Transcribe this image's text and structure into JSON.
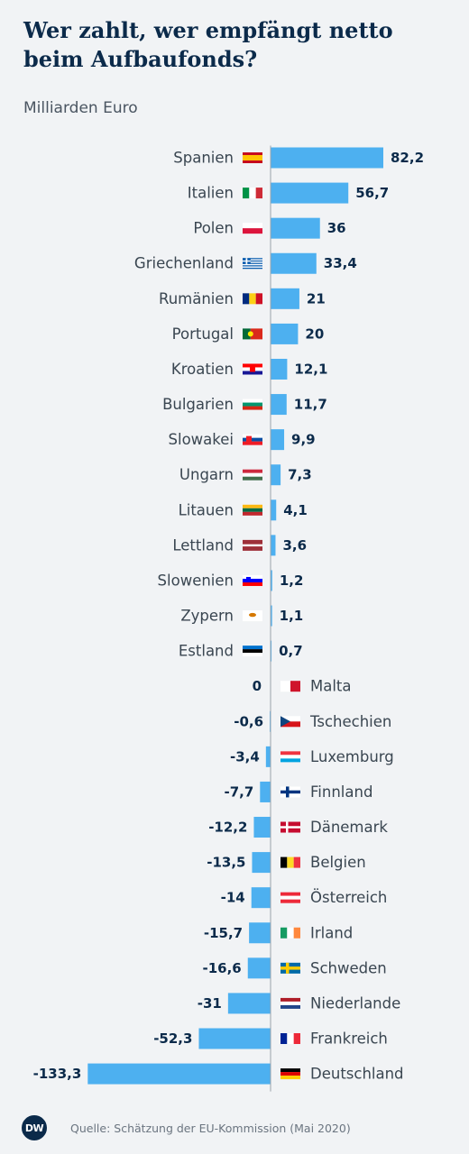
{
  "header": {
    "title": "Wer zahlt, wer empfängt netto beim Aufbaufonds?",
    "subtitle": "Milliarden Euro"
  },
  "footer": {
    "logo_text": "DW",
    "source": "Quelle: Schätzung der EU-Kommission (Mai 2020)"
  },
  "colors": {
    "bar": "#4db0f0",
    "label": "#3a4651",
    "value": "#0b2a4a",
    "axis": "#9aa3ab"
  },
  "chart_data": {
    "type": "bar",
    "orientation": "horizontal",
    "unit": "Milliarden Euro",
    "grid": false,
    "categories": [
      "Spanien",
      "Italien",
      "Polen",
      "Griechenland",
      "Rumänien",
      "Portugal",
      "Kroatien",
      "Bulgarien",
      "Slowakei",
      "Ungarn",
      "Litauen",
      "Lettland",
      "Slowenien",
      "Zypern",
      "Estland",
      "Malta",
      "Tschechien",
      "Luxemburg",
      "Finnland",
      "Dänemark",
      "Belgien",
      "Österreich",
      "Irland",
      "Schweden",
      "Niederlande",
      "Frankreich",
      "Deutschland"
    ],
    "values": [
      82.2,
      56.7,
      36,
      33.4,
      21,
      20,
      12.1,
      11.7,
      9.9,
      7.3,
      4.1,
      3.6,
      1.2,
      1.1,
      0.7,
      0,
      -0.6,
      -3.4,
      -7.7,
      -12.2,
      -13.5,
      -14,
      -15.7,
      -16.6,
      -31,
      -52.3,
      -133.3
    ],
    "value_labels": [
      "82,2",
      "56,7",
      "36",
      "33,4",
      "21",
      "20",
      "12,1",
      "11,7",
      "9,9",
      "7,3",
      "4,1",
      "3,6",
      "1,2",
      "1,1",
      "0,7",
      "0",
      "-0,6",
      "-3,4",
      "-7,7",
      "-12,2",
      "-13,5",
      "-14",
      "-15,7",
      "-16,6",
      "-31",
      "-52,3",
      "-133,3"
    ],
    "flags": [
      "es",
      "it",
      "pl",
      "gr",
      "ro",
      "pt",
      "hr",
      "bg",
      "sk",
      "hu",
      "lt",
      "lv",
      "si",
      "cy",
      "ee",
      "mt",
      "cz",
      "lu",
      "fi",
      "dk",
      "be",
      "at",
      "ie",
      "se",
      "nl",
      "fr",
      "de"
    ],
    "xlim": [
      -133.3,
      82.2
    ]
  }
}
